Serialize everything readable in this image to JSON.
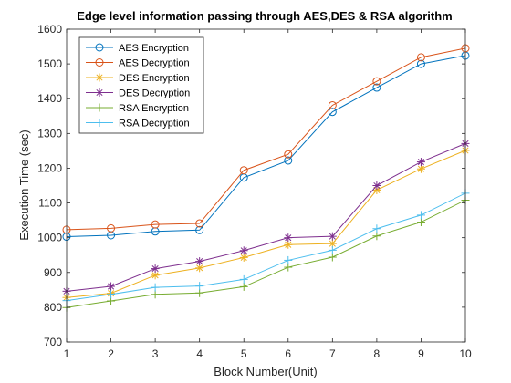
{
  "chart_data": {
    "type": "line",
    "title": "Edge level  information passing through AES,DES & RSA algorithm",
    "xlabel": "Block Number(Unit)",
    "ylabel": "Execution Time (sec)",
    "xlim": [
      1,
      10
    ],
    "ylim": [
      700,
      1600
    ],
    "x": [
      1,
      2,
      3,
      4,
      5,
      6,
      7,
      8,
      9,
      10
    ],
    "xticks": [
      "1",
      "2",
      "3",
      "4",
      "5",
      "6",
      "7",
      "8",
      "9",
      "10"
    ],
    "yticks": [
      "700",
      "800",
      "900",
      "1000",
      "1100",
      "1200",
      "1300",
      "1400",
      "1500",
      "1600"
    ],
    "grid": false,
    "legend_location": "top-left",
    "series": [
      {
        "name": "AES Encryption",
        "color": "#0072BD",
        "marker": "circle",
        "values": [
          1003,
          1007,
          1018,
          1022,
          1173,
          1222,
          1362,
          1432,
          1500,
          1524
        ]
      },
      {
        "name": "AES Decryption",
        "color": "#D95319",
        "marker": "circle",
        "values": [
          1023,
          1027,
          1038,
          1041,
          1194,
          1240,
          1381,
          1450,
          1519,
          1545
        ]
      },
      {
        "name": "DES Encryption",
        "color": "#EDB120",
        "marker": "asterisk",
        "values": [
          828,
          840,
          892,
          913,
          943,
          980,
          983,
          1137,
          1198,
          1251
        ]
      },
      {
        "name": "DES Decryption",
        "color": "#7E2F8E",
        "marker": "asterisk",
        "values": [
          846,
          860,
          911,
          932,
          963,
          1000,
          1004,
          1150,
          1218,
          1271
        ]
      },
      {
        "name": "RSA Encryption",
        "color": "#77AC30",
        "marker": "plus",
        "values": [
          799,
          818,
          837,
          841,
          859,
          915,
          944,
          1005,
          1045,
          1108
        ]
      },
      {
        "name": "RSA Decryption",
        "color": "#4DBEEE",
        "marker": "plus",
        "values": [
          819,
          837,
          857,
          861,
          880,
          935,
          964,
          1026,
          1065,
          1128
        ]
      }
    ]
  }
}
